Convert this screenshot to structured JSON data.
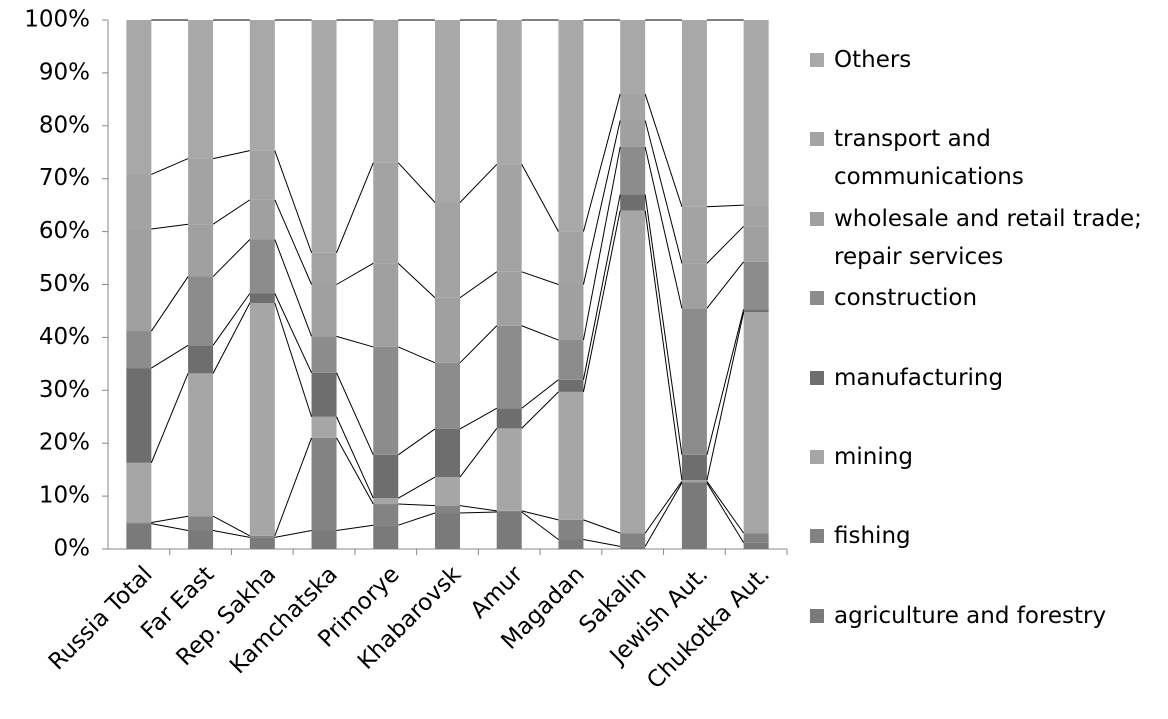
{
  "chart_data": {
    "type": "stacked_bar_100",
    "categories": [
      "Russia Total",
      "Far East",
      "Rep. Sakha",
      "Kamchatska",
      "Primorye",
      "Khabarovsk",
      "Amur",
      "Magadan",
      "Sakalin",
      "Jewish Aut.",
      "Chukotka Aut."
    ],
    "series": [
      {
        "name": "agriculture and forestry",
        "color": "#7a7a7a",
        "values": [
          4.8,
          3.5,
          2.2,
          3.5,
          4.5,
          6.8,
          7,
          1.8,
          0.5,
          12.5,
          1.2
        ]
      },
      {
        "name": "fishing",
        "color": "#838383",
        "values": [
          0.2,
          2.7,
          0.3,
          17.5,
          4,
          1.4,
          0.2,
          3.7,
          2.5,
          0.3,
          1.8
        ]
      },
      {
        "name": "mining",
        "color": "#a6a6a6",
        "values": [
          11.3,
          27,
          44,
          4,
          1.1,
          5.4,
          15.6,
          24.2,
          61,
          0.2,
          41.8
        ]
      },
      {
        "name": "manufacturing",
        "color": "#6e6e6e",
        "values": [
          17.9,
          5.3,
          1.8,
          8.3,
          8.2,
          9.1,
          3.8,
          2.3,
          3,
          4.8,
          0.5
        ]
      },
      {
        "name": "construction",
        "color": "#8c8c8c",
        "values": [
          7,
          13,
          10.2,
          6.9,
          20.4,
          12.5,
          15.6,
          7.5,
          9,
          27.7,
          9
        ]
      },
      {
        "name": "wholesale and retail trade; repair services",
        "color": "#a0a0a0",
        "values": [
          19.3,
          9.9,
          7.5,
          9.8,
          15.8,
          12.3,
          10.2,
          10.5,
          5,
          8.5,
          6.7
        ]
      },
      {
        "name": "transport and communications",
        "color": "#a3a3a3",
        "values": [
          10.3,
          12.4,
          9.3,
          6,
          19,
          18,
          20.3,
          10,
          5,
          10.7,
          4
        ]
      },
      {
        "name": "Others",
        "color": "#a8a8a8",
        "values": [
          29.2,
          26.2,
          24.7,
          44,
          27,
          34.5,
          27.3,
          40,
          14,
          35.3,
          35
        ]
      }
    ],
    "ylim": [
      0,
      100
    ],
    "yticks": [
      {
        "value": 0,
        "label": "0%"
      },
      {
        "value": 10,
        "label": "10%"
      },
      {
        "value": 20,
        "label": "20%"
      },
      {
        "value": 30,
        "label": "30%"
      },
      {
        "value": 40,
        "label": "40%"
      },
      {
        "value": 50,
        "label": "50%"
      },
      {
        "value": 60,
        "label": "60%"
      },
      {
        "value": 70,
        "label": "70%"
      },
      {
        "value": 80,
        "label": "80%"
      },
      {
        "value": 90,
        "label": "90%"
      },
      {
        "value": 100,
        "label": "100%"
      }
    ],
    "legend": "right"
  }
}
